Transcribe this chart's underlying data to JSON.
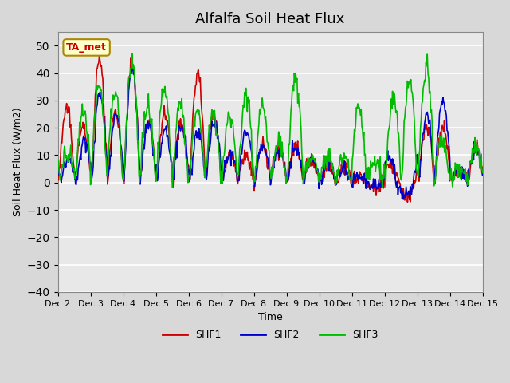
{
  "title": "Alfalfa Soil Heat Flux",
  "xlabel": "Time",
  "ylabel": "Soil Heat Flux (W/m2)",
  "ylim": [
    -40,
    55
  ],
  "yticks": [
    -40,
    -30,
    -20,
    -10,
    0,
    10,
    20,
    30,
    40,
    50
  ],
  "background_color": "#e8e8e8",
  "plot_bg_color": "#e0e0e0",
  "grid_color": "#ffffff",
  "shf1_color": "#cc0000",
  "shf2_color": "#0000cc",
  "shf3_color": "#00bb00",
  "legend_labels": [
    "SHF1",
    "SHF2",
    "SHF3"
  ],
  "annotation_text": "TA_met",
  "annotation_color": "#cc0000",
  "annotation_bg": "#ffffcc"
}
